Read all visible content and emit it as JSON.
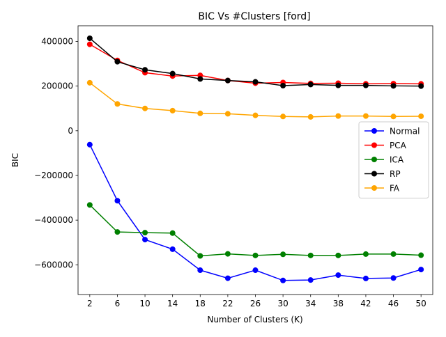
{
  "chart_data": {
    "type": "line",
    "title": "BIC Vs #Clusters [ford]",
    "xlabel": "Number of Clusters (K)",
    "ylabel": "BIC",
    "x": [
      2,
      6,
      10,
      14,
      18,
      22,
      26,
      30,
      34,
      38,
      42,
      46,
      50
    ],
    "xlim": [
      0.3,
      51.7
    ],
    "ylim": [
      -733000,
      470000
    ],
    "yticks": [
      -600000,
      -400000,
      -200000,
      0,
      200000,
      400000
    ],
    "ytick_labels": [
      "−600000",
      "−400000",
      "−200000",
      "0",
      "200000",
      "400000"
    ],
    "grid": false,
    "legend_position": "center-right",
    "series": [
      {
        "name": "Normal",
        "color": "#0000ff",
        "values": [
          -62000,
          -313000,
          -487000,
          -530000,
          -624000,
          -660000,
          -624000,
          -670000,
          -668000,
          -646000,
          -661000,
          -659000,
          -621000
        ]
      },
      {
        "name": "PCA",
        "color": "#ff0000",
        "values": [
          387000,
          315000,
          260000,
          245000,
          248000,
          225000,
          213000,
          216000,
          212000,
          213000,
          210000,
          211000,
          210000
        ]
      },
      {
        "name": "ICA",
        "color": "#008000",
        "values": [
          -332000,
          -453000,
          -456000,
          -458000,
          -560000,
          -551000,
          -558000,
          -553000,
          -558000,
          -558000,
          -552000,
          -552000,
          -557000
        ]
      },
      {
        "name": "RP",
        "color": "#000000",
        "values": [
          414000,
          309000,
          273000,
          256000,
          232000,
          225000,
          219000,
          202000,
          207000,
          203000,
          203000,
          201000,
          200000
        ]
      },
      {
        "name": "FA",
        "color": "#ffa500",
        "values": [
          215000,
          120000,
          100000,
          90000,
          78000,
          76000,
          69000,
          64000,
          62000,
          66000,
          66000,
          64000,
          65000
        ]
      }
    ]
  }
}
